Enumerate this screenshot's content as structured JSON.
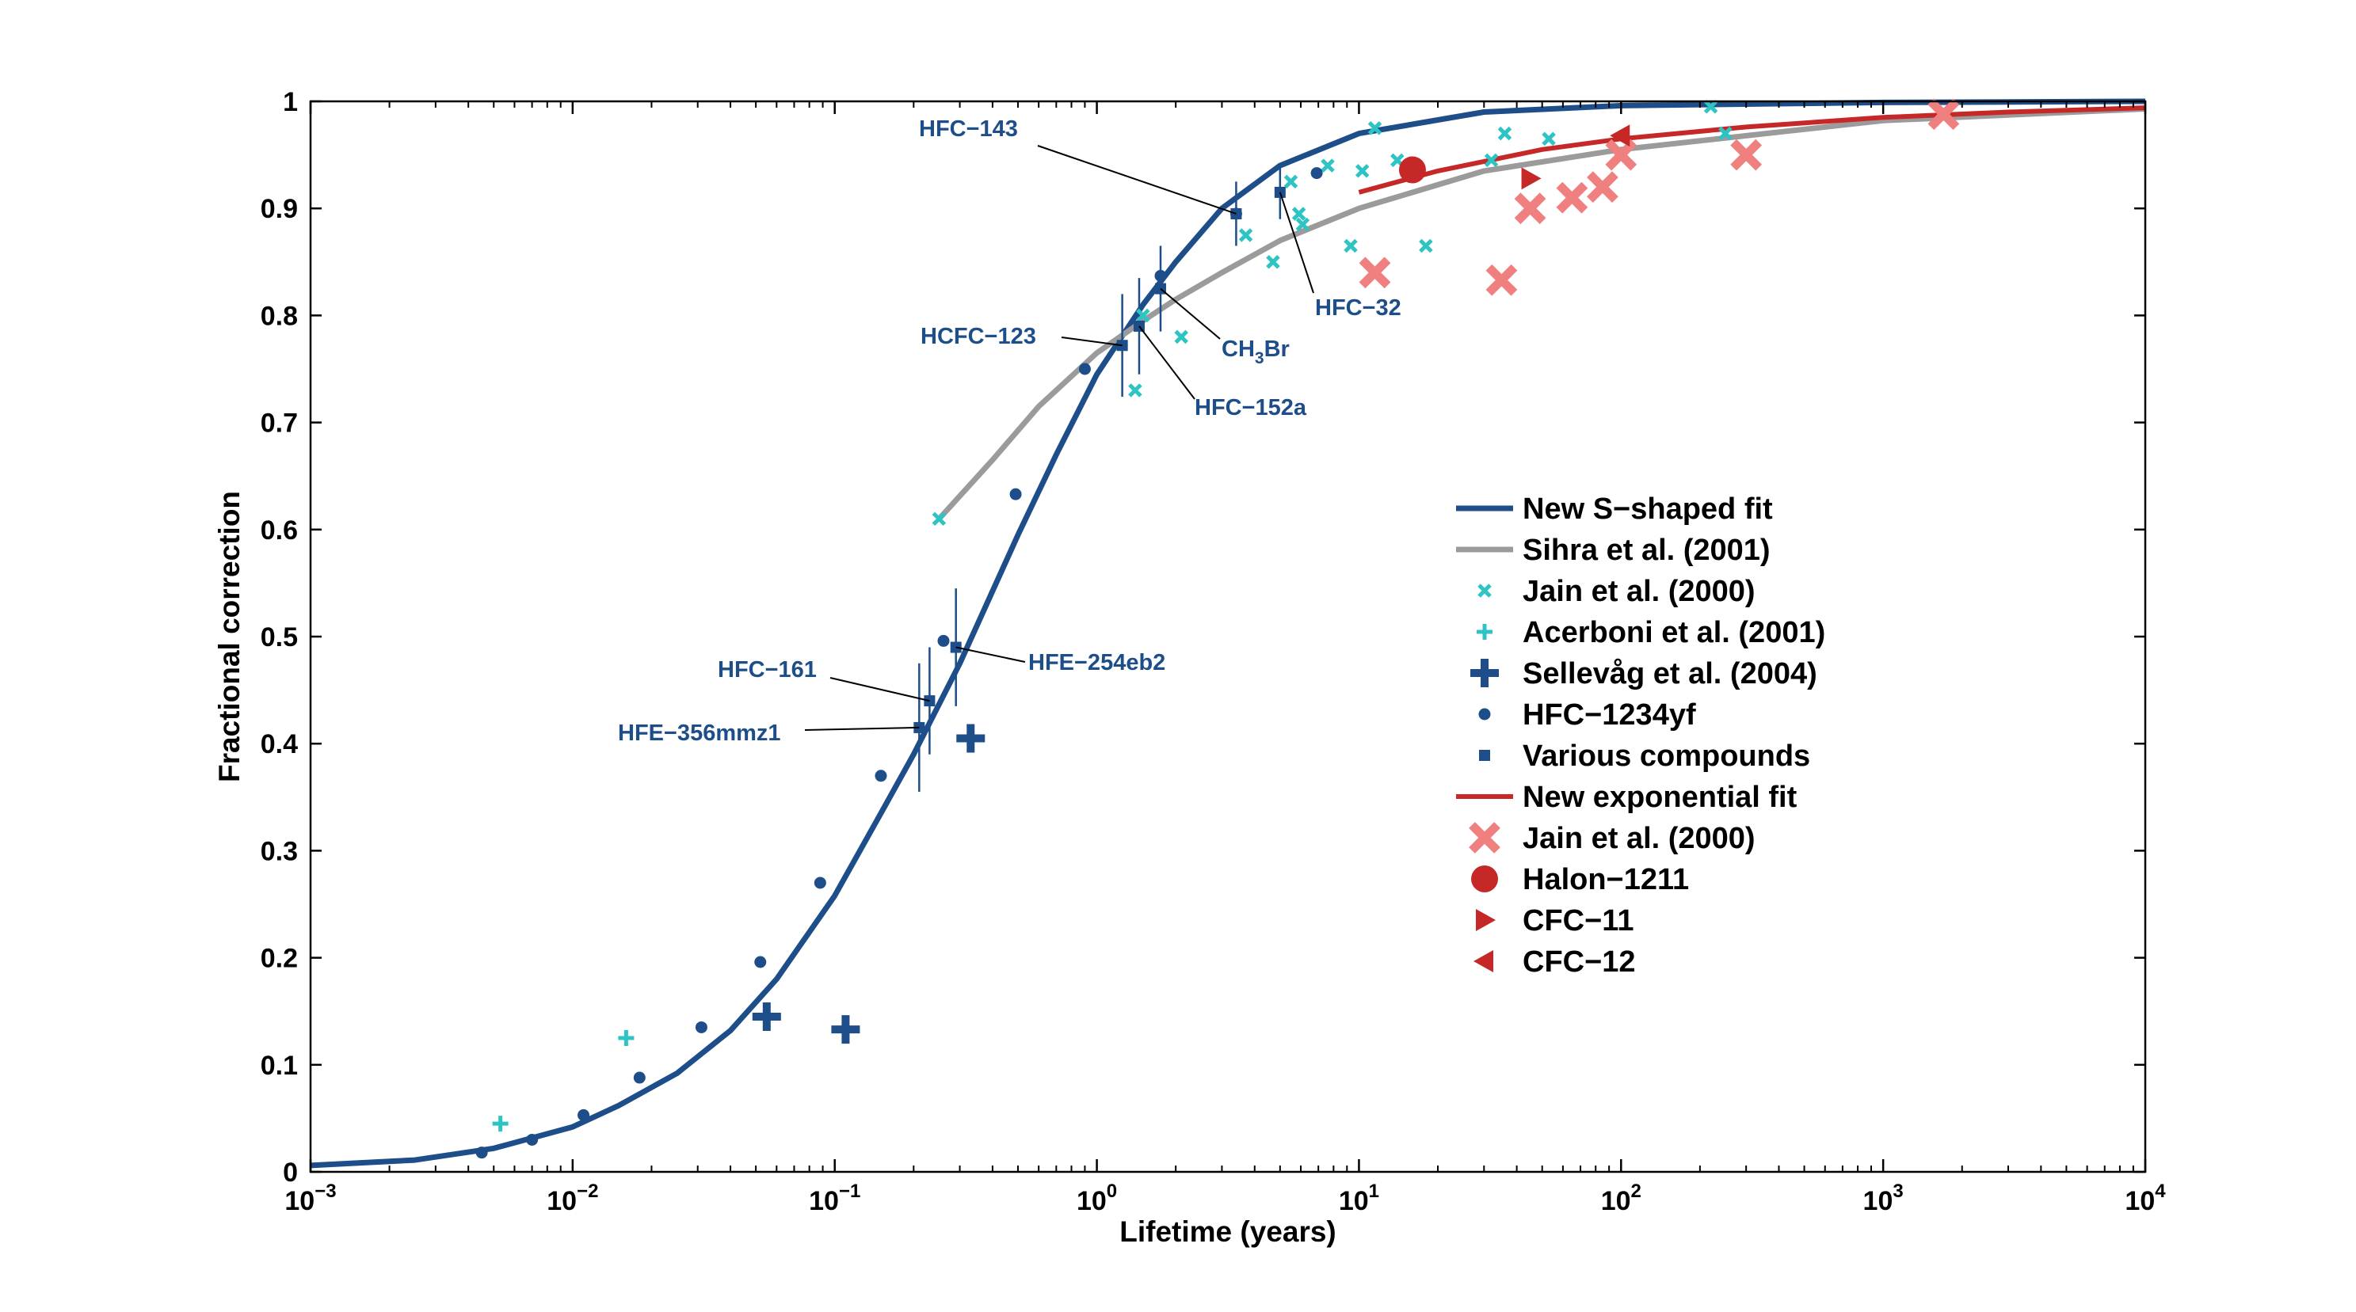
{
  "chart_data": {
    "type": "scatter",
    "title": "",
    "xlabel": "Lifetime (years)",
    "ylabel": "Fractional correction",
    "xscale": "log",
    "xlim": [
      0.001,
      10000
    ],
    "ylim": [
      0,
      1
    ],
    "grid": false,
    "legend_position": "right",
    "x_ticks": [
      {
        "value": 0.001,
        "base": "10",
        "exp": "−3"
      },
      {
        "value": 0.01,
        "base": "10",
        "exp": "−2"
      },
      {
        "value": 0.1,
        "base": "10",
        "exp": "−1"
      },
      {
        "value": 1,
        "base": "10",
        "exp": "0"
      },
      {
        "value": 10,
        "base": "10",
        "exp": "1"
      },
      {
        "value": 100,
        "base": "10",
        "exp": "2"
      },
      {
        "value": 1000,
        "base": "10",
        "exp": "3"
      },
      {
        "value": 10000,
        "base": "10",
        "exp": "4"
      }
    ],
    "y_ticks": [
      {
        "value": 0,
        "label": "0"
      },
      {
        "value": 0.1,
        "label": "0.1"
      },
      {
        "value": 0.2,
        "label": "0.2"
      },
      {
        "value": 0.3,
        "label": "0.3"
      },
      {
        "value": 0.4,
        "label": "0.4"
      },
      {
        "value": 0.5,
        "label": "0.5"
      },
      {
        "value": 0.6,
        "label": "0.6"
      },
      {
        "value": 0.7,
        "label": "0.7"
      },
      {
        "value": 0.8,
        "label": "0.8"
      },
      {
        "value": 0.9,
        "label": "0.9"
      },
      {
        "value": 1,
        "label": "1"
      }
    ],
    "series": [
      {
        "name": "New S−shaped fit",
        "kind": "line",
        "color": "#1d4e89",
        "x": [
          0.001,
          0.0025,
          0.005,
          0.01,
          0.015,
          0.025,
          0.04,
          0.06,
          0.1,
          0.15,
          0.2,
          0.3,
          0.5,
          0.7,
          1,
          1.5,
          2,
          3,
          5,
          10,
          30,
          100,
          1000,
          10000
        ],
        "y": [
          0.006,
          0.011,
          0.022,
          0.042,
          0.062,
          0.092,
          0.132,
          0.18,
          0.258,
          0.335,
          0.39,
          0.475,
          0.595,
          0.67,
          0.745,
          0.81,
          0.85,
          0.9,
          0.94,
          0.97,
          0.99,
          0.996,
          0.999,
          1.0
        ]
      },
      {
        "name": "Sihra et al. (2001)",
        "kind": "line",
        "color": "#9b9b9b",
        "x": [
          0.25,
          0.4,
          0.6,
          1,
          1.5,
          2,
          3,
          5,
          10,
          30,
          100,
          1000,
          10000
        ],
        "y": [
          0.61,
          0.665,
          0.715,
          0.765,
          0.795,
          0.815,
          0.84,
          0.87,
          0.9,
          0.935,
          0.955,
          0.982,
          0.993
        ]
      },
      {
        "name": "Jain et al. (2000)",
        "kind": "x",
        "color": "#2ec4c4",
        "x": [
          0.25,
          1.4,
          1.5,
          2.1,
          3.7,
          4.7,
          5.5,
          5.9,
          6.1,
          7.6,
          9.3,
          10.3,
          11.5,
          14,
          18,
          32,
          36,
          53,
          220,
          250
        ],
        "y": [
          0.61,
          0.73,
          0.8,
          0.78,
          0.875,
          0.85,
          0.925,
          0.895,
          0.885,
          0.94,
          0.865,
          0.935,
          0.975,
          0.945,
          0.865,
          0.945,
          0.97,
          0.965,
          0.995,
          0.97
        ]
      },
      {
        "name": "Acerboni et al. (2001)",
        "kind": "plus",
        "color": "#2ec4c4",
        "x": [
          0.0053,
          0.016
        ],
        "y": [
          0.045,
          0.125
        ]
      },
      {
        "name": "Sellevåg et al. (2004)",
        "kind": "bigplus",
        "color": "#1d4e89",
        "x": [
          0.055,
          0.11,
          0.33
        ],
        "y": [
          0.145,
          0.133,
          0.405
        ]
      },
      {
        "name": "HFC−1234yf",
        "kind": "dot",
        "color": "#1d4e89",
        "x": [
          0.0045,
          0.007,
          0.011,
          0.018,
          0.031,
          0.052,
          0.088,
          0.15,
          0.26,
          0.49,
          0.9,
          1.75,
          3.4,
          6.9
        ],
        "y": [
          0.018,
          0.03,
          0.053,
          0.088,
          0.135,
          0.196,
          0.27,
          0.37,
          0.496,
          0.633,
          0.75,
          0.837,
          0.895,
          0.933
        ]
      },
      {
        "name": "Various compounds",
        "kind": "square",
        "color": "#1d4e89",
        "x": [
          0.21,
          0.23,
          0.29,
          1.25,
          1.45,
          1.75,
          3.4,
          5.0
        ],
        "y": [
          0.415,
          0.44,
          0.49,
          0.772,
          0.79,
          0.825,
          0.895,
          0.915
        ],
        "errors": [
          0.06,
          0.05,
          0.055,
          0.048,
          0.045,
          0.04,
          0.03,
          0.025
        ]
      },
      {
        "name": "New exponential fit",
        "kind": "line",
        "color": "#c62828",
        "x": [
          10,
          20,
          50,
          100,
          300,
          1000,
          3000,
          10000
        ],
        "y": [
          0.915,
          0.935,
          0.955,
          0.965,
          0.976,
          0.985,
          0.99,
          0.994
        ]
      },
      {
        "name": "Jain et al. (2000)",
        "kind": "bigx",
        "color": "#f08080",
        "x": [
          11.5,
          35,
          45,
          65,
          85,
          100,
          300,
          1700
        ],
        "y": [
          0.84,
          0.833,
          0.9,
          0.91,
          0.92,
          0.95,
          0.95,
          0.988
        ]
      },
      {
        "name": "Halon−1211",
        "kind": "bigdot",
        "color": "#c62828",
        "x": [
          16
        ],
        "y": [
          0.936
        ]
      },
      {
        "name": "CFC−11",
        "kind": "tri-right",
        "color": "#c62828",
        "x": [
          45
        ],
        "y": [
          0.928
        ]
      },
      {
        "name": "CFC−12",
        "kind": "tri-left",
        "color": "#c62828",
        "x": [
          100
        ],
        "y": [
          0.968
        ]
      }
    ],
    "annotations": [
      {
        "text": "HFC−143",
        "sub": "",
        "text_after": "",
        "x": 3.4,
        "y": 0.895
      },
      {
        "text": "HFC−32",
        "sub": "",
        "text_after": "",
        "x": 5.0,
        "y": 0.915
      },
      {
        "text": "CH",
        "sub": "3",
        "text_after": "Br",
        "x": 1.75,
        "y": 0.825
      },
      {
        "text": "HCFC−123",
        "sub": "",
        "text_after": "",
        "x": 1.25,
        "y": 0.772
      },
      {
        "text": "HFC−152a",
        "sub": "",
        "text_after": "",
        "x": 1.45,
        "y": 0.79
      },
      {
        "text": "HFC−161",
        "sub": "",
        "text_after": "",
        "x": 0.23,
        "y": 0.44
      },
      {
        "text": "HFE−254eb2",
        "sub": "",
        "text_after": "",
        "x": 0.29,
        "y": 0.49
      },
      {
        "text": "HFE−356mmz1",
        "sub": "",
        "text_after": "",
        "x": 0.21,
        "y": 0.415
      }
    ]
  }
}
